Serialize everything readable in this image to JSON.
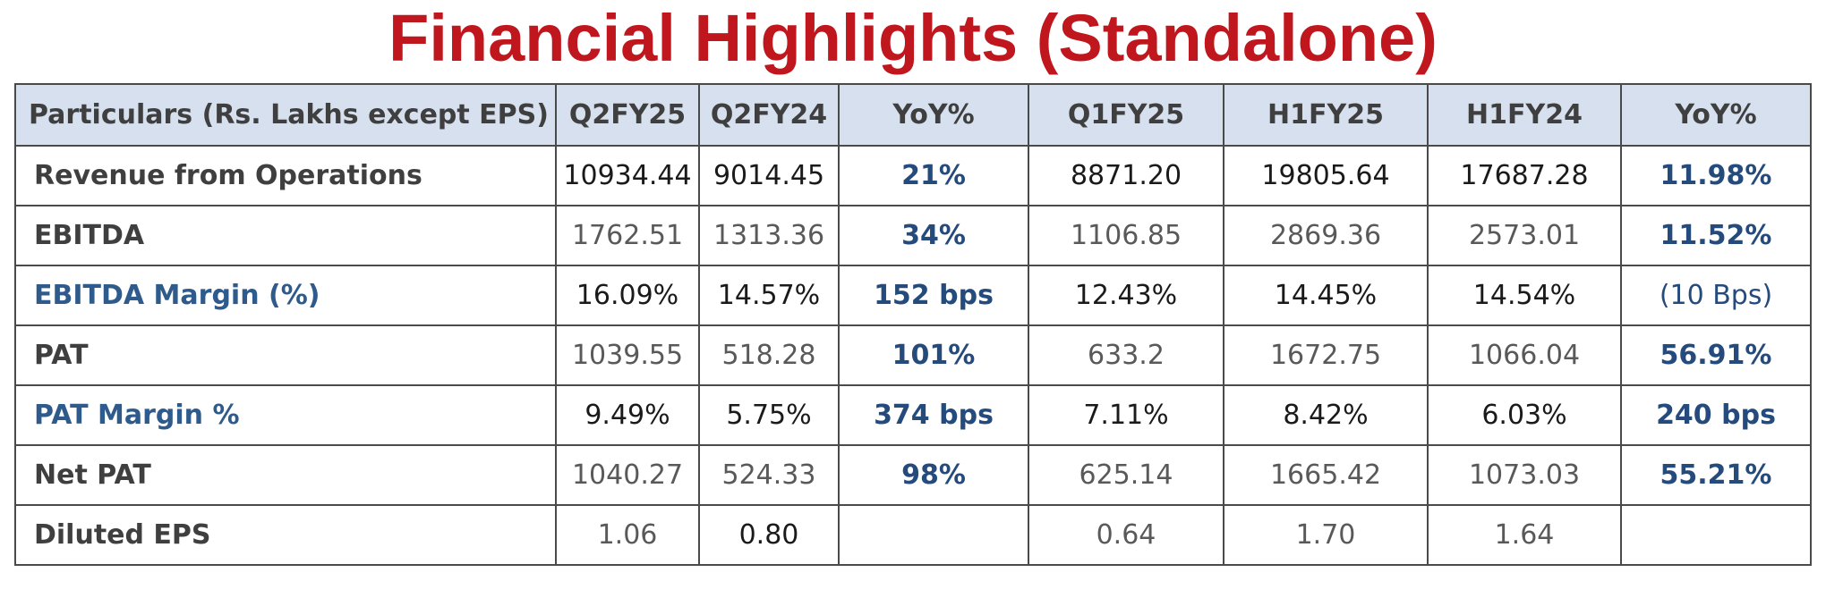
{
  "title": "Financial Highlights (Standalone)",
  "table": {
    "headers": [
      "Particulars (Rs. Lakhs except EPS)",
      "Q2FY25",
      "Q2FY24",
      "YoY%",
      "Q1FY25",
      "H1FY25",
      "H1FY24",
      "YoY%"
    ],
    "rows": [
      {
        "label": "Revenue from Operations",
        "values": [
          "10934.44",
          "9014.45",
          "21%",
          "8871.20",
          "19805.64",
          "17687.28",
          "11.98%"
        ]
      },
      {
        "label": "EBITDA",
        "values": [
          "1762.51",
          "1313.36",
          "34%",
          "1106.85",
          "2869.36",
          "2573.01",
          "11.52%"
        ]
      },
      {
        "label": "EBITDA Margin (%)",
        "values": [
          "16.09%",
          "14.57%",
          "152 bps",
          "12.43%",
          "14.45%",
          "14.54%",
          "(10 Bps)"
        ]
      },
      {
        "label": "PAT",
        "values": [
          "1039.55",
          "518.28",
          "101%",
          "633.2",
          "1672.75",
          "1066.04",
          "56.91%"
        ]
      },
      {
        "label": "PAT Margin %",
        "values": [
          "9.49%",
          "5.75%",
          "374 bps",
          "7.11%",
          "8.42%",
          "6.03%",
          "240 bps"
        ]
      },
      {
        "label": "Net PAT",
        "values": [
          "1040.27",
          "524.33",
          "98%",
          "625.14",
          "1665.42",
          "1073.03",
          "55.21%"
        ]
      },
      {
        "label": "Diluted EPS",
        "values": [
          "1.06",
          "0.80",
          "",
          "0.64",
          "1.70",
          "1.64",
          ""
        ]
      }
    ]
  },
  "colors": {
    "title": "#c0161d",
    "header_background": "#d6e0ee",
    "label_text": "#3f3f3f",
    "highlight_label": "#2e5a8c",
    "yoy_text": "#254a7c"
  }
}
